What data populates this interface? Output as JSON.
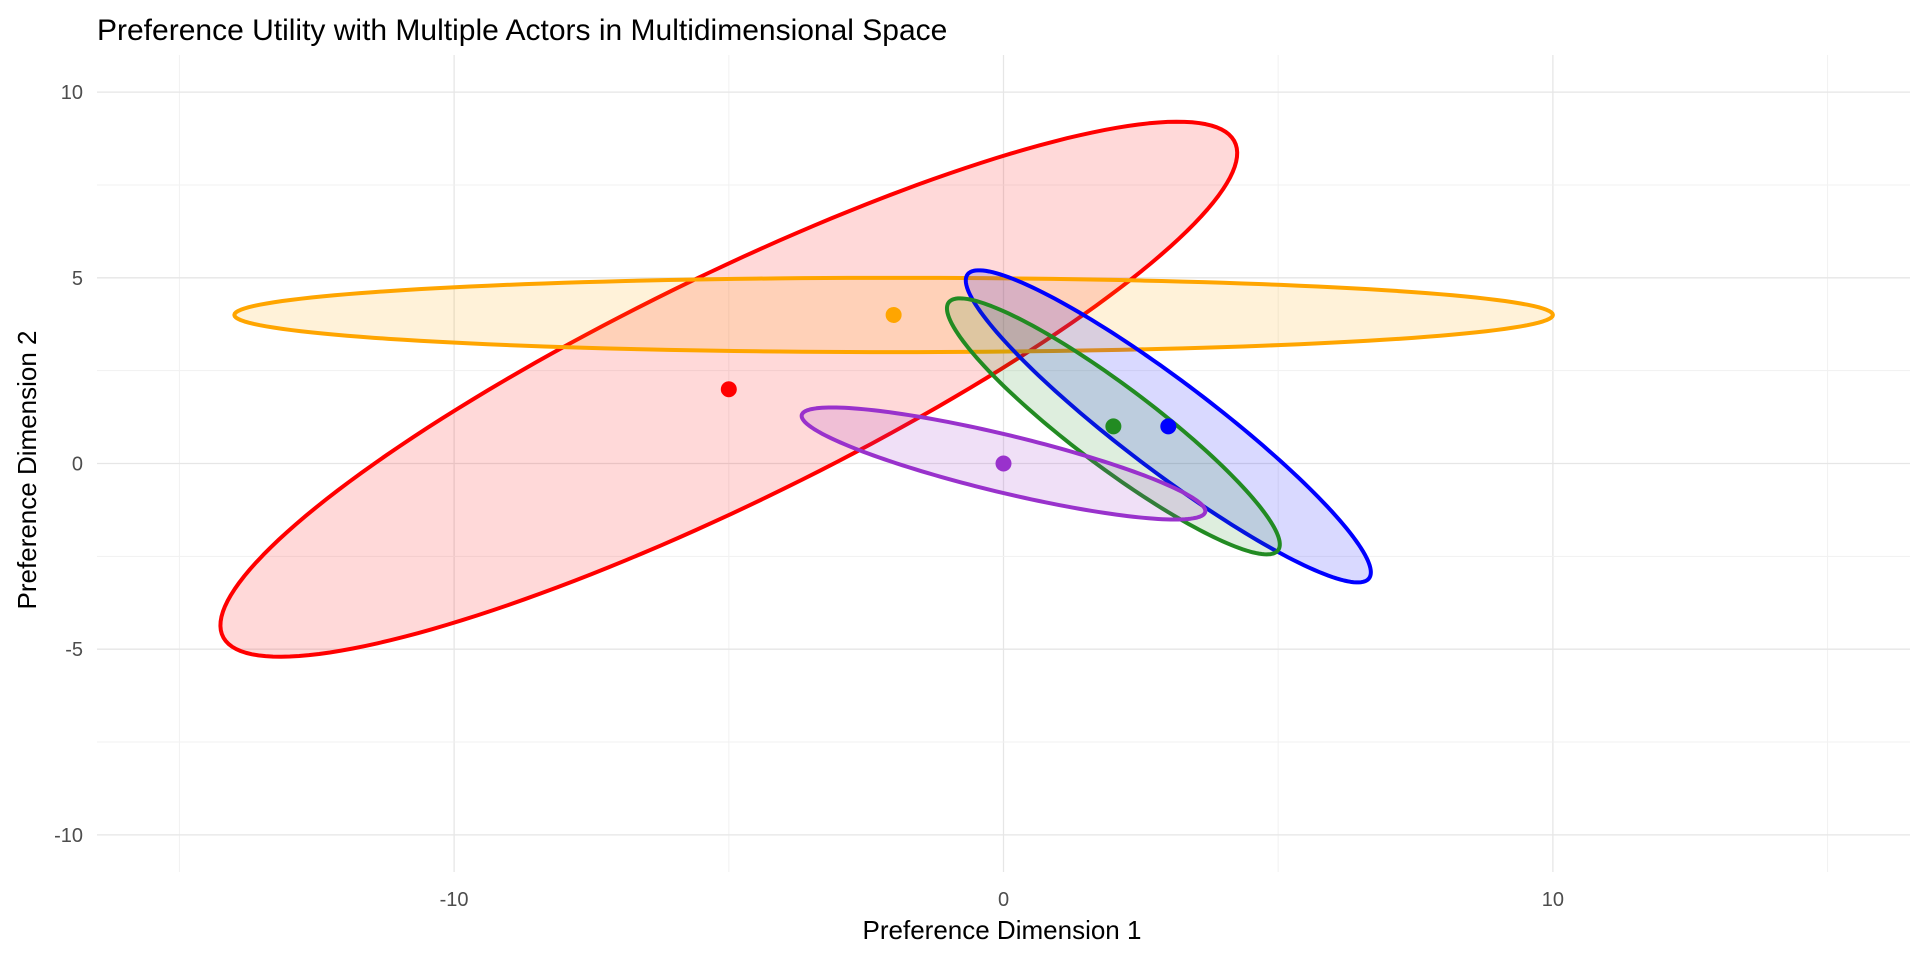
{
  "chart_data": {
    "type": "scatter",
    "title": "Preference Utility with Multiple Actors in Multidimensional Space",
    "xlabel": "Preference Dimension 1",
    "ylabel": "Preference Dimension 2",
    "xlim": [
      -16.5,
      16.5
    ],
    "ylim": [
      -11,
      11
    ],
    "x_ticks": [
      -10,
      0,
      10
    ],
    "y_ticks": [
      10,
      5,
      0,
      -5,
      -10
    ],
    "x_tick_labels": [
      "-10",
      "0",
      "10"
    ],
    "y_tick_labels": [
      "10",
      "5",
      "0",
      "-5",
      "-10"
    ],
    "grid": true,
    "legend": "none",
    "actors": [
      {
        "color": "#ff0000",
        "ideal_point": {
          "x": -5,
          "y": 2
        },
        "indifference_ellipse": {
          "cx": -5,
          "cy": 2,
          "semi_major": 11.4,
          "semi_minor": 2.75,
          "angle_deg": 37
        }
      },
      {
        "color": "#ffa500",
        "ideal_point": {
          "x": -2,
          "y": 4
        },
        "indifference_ellipse": {
          "cx": -2,
          "cy": 4,
          "semi_major": 12,
          "semi_minor": 1,
          "angle_deg": 0
        }
      },
      {
        "color": "#0000ff",
        "ideal_point": {
          "x": 3,
          "y": 1
        },
        "indifference_ellipse": {
          "cx": 3,
          "cy": 1,
          "semi_major": 5.5,
          "semi_minor": 1.0,
          "angle_deg": -49
        }
      },
      {
        "color": "#228b22",
        "ideal_point": {
          "x": 2,
          "y": 1
        },
        "indifference_ellipse": {
          "cx": 2,
          "cy": 1,
          "semi_major": 4.5,
          "semi_minor": 0.9,
          "angle_deg": -49
        }
      },
      {
        "color": "#9932cc",
        "ideal_point": {
          "x": 0,
          "y": 0
        },
        "indifference_ellipse": {
          "cx": 0,
          "cy": 0,
          "semi_major": 3.9,
          "semi_minor": 0.75,
          "angle_deg": -20
        }
      }
    ]
  }
}
